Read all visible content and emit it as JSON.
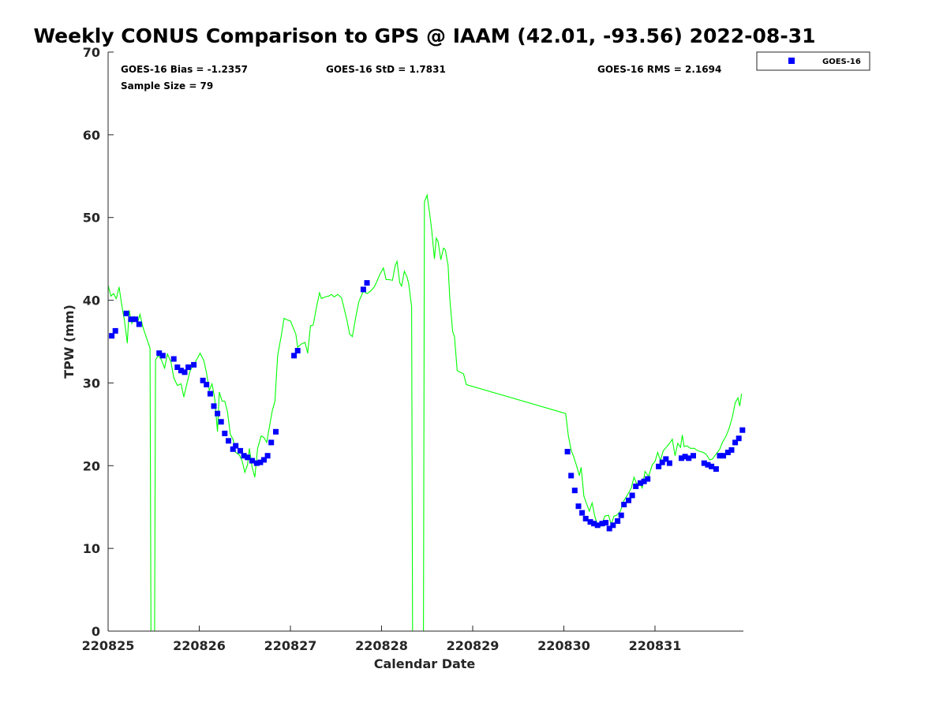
{
  "chart_data": {
    "type": "scatter",
    "title": "Weekly CONUS Comparison to GPS @ IAAM (42.01, -93.56) 2022-08-31",
    "xlabel": "Calendar Date",
    "ylabel": "TPW (mm)",
    "xlim": [
      0,
      6.97
    ],
    "ylim": [
      0,
      70
    ],
    "x_ticks": [
      {
        "value": 0,
        "label": "220825"
      },
      {
        "value": 1,
        "label": "220826"
      },
      {
        "value": 2,
        "label": "220827"
      },
      {
        "value": 3,
        "label": "220828"
      },
      {
        "value": 4,
        "label": "220829"
      },
      {
        "value": 5,
        "label": "220830"
      },
      {
        "value": 6,
        "label": "220831"
      }
    ],
    "y_ticks": [
      {
        "value": 0,
        "label": "0"
      },
      {
        "value": 10,
        "label": "10"
      },
      {
        "value": 20,
        "label": "20"
      },
      {
        "value": 30,
        "label": "30"
      },
      {
        "value": 40,
        "label": "40"
      },
      {
        "value": 50,
        "label": "50"
      },
      {
        "value": 60,
        "label": "60"
      },
      {
        "value": 70,
        "label": "70"
      }
    ],
    "x_note": "x values are in days after 220825 (2022-08-25 00Z), the first labeled tick",
    "stats": {
      "bias": "GOES-16 Bias = -1.2357",
      "std": "GOES-16 StD = 1.7831",
      "rms": "GOES-16 RMS = 2.1694",
      "sample": "Sample Size = 79"
    },
    "legend": {
      "position": "top-right",
      "entries": [
        "GOES-16"
      ]
    },
    "grid": false,
    "series": [
      {
        "name": "GOES-16",
        "kind": "points",
        "color": "#0000ff",
        "points": [
          [
            0.04,
            35.7
          ],
          [
            0.08,
            36.3
          ],
          [
            0.2,
            38.4
          ],
          [
            0.25,
            37.7
          ],
          [
            0.3,
            37.7
          ],
          [
            0.34,
            37.1
          ],
          [
            0.56,
            33.6
          ],
          [
            0.6,
            33.3
          ],
          [
            0.72,
            32.9
          ],
          [
            0.76,
            31.9
          ],
          [
            0.8,
            31.5
          ],
          [
            0.84,
            31.3
          ],
          [
            0.88,
            31.9
          ],
          [
            0.94,
            32.2
          ],
          [
            1.04,
            30.3
          ],
          [
            1.08,
            29.8
          ],
          [
            1.12,
            28.7
          ],
          [
            1.16,
            27.2
          ],
          [
            1.2,
            26.3
          ],
          [
            1.24,
            25.3
          ],
          [
            1.28,
            23.9
          ],
          [
            1.32,
            23.0
          ],
          [
            1.37,
            22.0
          ],
          [
            1.4,
            22.4
          ],
          [
            1.45,
            21.8
          ],
          [
            1.49,
            21.2
          ],
          [
            1.53,
            21.0
          ],
          [
            1.58,
            20.6
          ],
          [
            1.63,
            20.3
          ],
          [
            1.67,
            20.4
          ],
          [
            1.71,
            20.7
          ],
          [
            1.75,
            21.2
          ],
          [
            1.79,
            22.8
          ],
          [
            1.84,
            24.1
          ],
          [
            2.04,
            33.3
          ],
          [
            2.08,
            33.9
          ],
          [
            2.8,
            41.3
          ],
          [
            2.84,
            42.1
          ],
          [
            5.04,
            21.7
          ],
          [
            5.08,
            18.8
          ],
          [
            5.12,
            17.0
          ],
          [
            5.16,
            15.1
          ],
          [
            5.2,
            14.3
          ],
          [
            5.24,
            13.6
          ],
          [
            5.29,
            13.2
          ],
          [
            5.33,
            13.0
          ],
          [
            5.37,
            12.8
          ],
          [
            5.42,
            13.0
          ],
          [
            5.46,
            13.1
          ],
          [
            5.5,
            12.4
          ],
          [
            5.54,
            12.8
          ],
          [
            5.59,
            13.3
          ],
          [
            5.63,
            14.0
          ],
          [
            5.66,
            15.3
          ],
          [
            5.71,
            15.8
          ],
          [
            5.75,
            16.4
          ],
          [
            5.79,
            17.5
          ],
          [
            5.84,
            17.9
          ],
          [
            5.88,
            18.1
          ],
          [
            5.92,
            18.4
          ],
          [
            6.04,
            19.9
          ],
          [
            6.08,
            20.4
          ],
          [
            6.12,
            20.8
          ],
          [
            6.16,
            20.3
          ],
          [
            6.29,
            20.9
          ],
          [
            6.33,
            21.1
          ],
          [
            6.37,
            20.9
          ],
          [
            6.42,
            21.2
          ],
          [
            6.54,
            20.3
          ],
          [
            6.58,
            20.1
          ],
          [
            6.62,
            19.9
          ],
          [
            6.67,
            19.6
          ],
          [
            6.71,
            21.2
          ],
          [
            6.75,
            21.2
          ],
          [
            6.8,
            21.6
          ],
          [
            6.84,
            21.9
          ],
          [
            6.88,
            22.8
          ],
          [
            6.92,
            23.3
          ],
          [
            6.96,
            24.3
          ]
        ]
      },
      {
        "name": "GPS",
        "kind": "line",
        "color": "#00ff00",
        "points": [
          [
            0.0,
            41.8
          ],
          [
            0.03,
            40.5
          ],
          [
            0.06,
            40.8
          ],
          [
            0.09,
            40.2
          ],
          [
            0.12,
            41.6
          ],
          [
            0.15,
            39.4
          ],
          [
            0.18,
            37.5
          ],
          [
            0.21,
            34.8
          ],
          [
            0.23,
            38.8
          ],
          [
            0.26,
            37.2
          ],
          [
            0.29,
            38.0
          ],
          [
            0.32,
            37.2
          ],
          [
            0.35,
            38.3
          ],
          [
            0.38,
            36.8
          ],
          [
            0.42,
            35.5
          ],
          [
            0.46,
            34.2
          ],
          [
            0.47,
            0
          ],
          [
            0.51,
            0
          ],
          [
            0.52,
            32.8
          ],
          [
            0.55,
            33.3
          ],
          [
            0.58,
            32.9
          ],
          [
            0.62,
            31.8
          ],
          [
            0.65,
            33.5
          ],
          [
            0.69,
            32.5
          ],
          [
            0.72,
            30.6
          ],
          [
            0.76,
            29.7
          ],
          [
            0.8,
            29.9
          ],
          [
            0.83,
            28.3
          ],
          [
            0.86,
            29.7
          ],
          [
            0.9,
            31.5
          ],
          [
            0.94,
            32.2
          ],
          [
            0.98,
            33.0
          ],
          [
            1.01,
            33.6
          ],
          [
            1.05,
            32.7
          ],
          [
            1.08,
            31.2
          ],
          [
            1.11,
            29.1
          ],
          [
            1.14,
            29.9
          ],
          [
            1.17,
            28.1
          ],
          [
            1.2,
            24.1
          ],
          [
            1.22,
            28.9
          ],
          [
            1.25,
            27.8
          ],
          [
            1.28,
            27.8
          ],
          [
            1.31,
            26.5
          ],
          [
            1.34,
            23.8
          ],
          [
            1.37,
            23.2
          ],
          [
            1.4,
            21.6
          ],
          [
            1.44,
            21.3
          ],
          [
            1.47,
            20.6
          ],
          [
            1.5,
            19.2
          ],
          [
            1.53,
            20.1
          ],
          [
            1.55,
            22.1
          ],
          [
            1.58,
            19.8
          ],
          [
            1.61,
            18.6
          ],
          [
            1.64,
            22.1
          ],
          [
            1.68,
            23.6
          ],
          [
            1.71,
            23.4
          ],
          [
            1.74,
            22.8
          ],
          [
            1.77,
            24.7
          ],
          [
            1.8,
            26.6
          ],
          [
            1.83,
            27.8
          ],
          [
            1.86,
            33.3
          ],
          [
            1.9,
            35.7
          ],
          [
            1.93,
            37.8
          ],
          [
            1.97,
            37.6
          ],
          [
            2.0,
            37.5
          ],
          [
            2.03,
            36.7
          ],
          [
            2.06,
            35.9
          ],
          [
            2.08,
            34.3
          ],
          [
            2.12,
            34.7
          ],
          [
            2.16,
            34.9
          ],
          [
            2.19,
            33.6
          ],
          [
            2.22,
            36.9
          ],
          [
            2.25,
            37.0
          ],
          [
            2.28,
            38.8
          ],
          [
            2.32,
            40.9
          ],
          [
            2.34,
            40.2
          ],
          [
            2.38,
            40.4
          ],
          [
            2.42,
            40.5
          ],
          [
            2.45,
            40.7
          ],
          [
            2.48,
            40.4
          ],
          [
            2.52,
            40.7
          ],
          [
            2.56,
            40.3
          ],
          [
            2.59,
            39.0
          ],
          [
            2.62,
            37.6
          ],
          [
            2.65,
            35.9
          ],
          [
            2.68,
            35.6
          ],
          [
            2.72,
            38.1
          ],
          [
            2.75,
            39.8
          ],
          [
            2.8,
            41.1
          ],
          [
            2.84,
            40.8
          ],
          [
            2.88,
            41.1
          ],
          [
            2.92,
            41.6
          ],
          [
            2.95,
            42.3
          ],
          [
            2.98,
            43.1
          ],
          [
            3.02,
            43.9
          ],
          [
            3.05,
            42.5
          ],
          [
            3.08,
            42.5
          ],
          [
            3.12,
            42.4
          ],
          [
            3.15,
            44.2
          ],
          [
            3.17,
            44.7
          ],
          [
            3.2,
            42.1
          ],
          [
            3.22,
            41.7
          ],
          [
            3.25,
            43.5
          ],
          [
            3.28,
            42.8
          ],
          [
            3.3,
            41.9
          ],
          [
            3.33,
            39.2
          ],
          [
            3.34,
            0
          ],
          [
            3.46,
            0
          ],
          [
            3.47,
            51.9
          ],
          [
            3.5,
            52.7
          ],
          [
            3.53,
            50.3
          ],
          [
            3.55,
            48.5
          ],
          [
            3.58,
            45.0
          ],
          [
            3.6,
            47.5
          ],
          [
            3.62,
            47.1
          ],
          [
            3.65,
            44.9
          ],
          [
            3.68,
            46.3
          ],
          [
            3.7,
            46.1
          ],
          [
            3.73,
            44.2
          ],
          [
            3.75,
            40.0
          ],
          [
            3.78,
            36.2
          ],
          [
            3.8,
            35.6
          ],
          [
            3.83,
            31.5
          ],
          [
            3.86,
            31.3
          ],
          [
            3.9,
            31.1
          ],
          [
            3.93,
            29.8
          ],
          [
            5.02,
            26.3
          ],
          [
            5.05,
            23.6
          ],
          [
            5.08,
            21.9
          ],
          [
            5.11,
            21.0
          ],
          [
            5.14,
            20.0
          ],
          [
            5.17,
            18.8
          ],
          [
            5.19,
            19.8
          ],
          [
            5.22,
            16.3
          ],
          [
            5.25,
            15.4
          ],
          [
            5.28,
            14.5
          ],
          [
            5.31,
            15.5
          ],
          [
            5.34,
            13.9
          ],
          [
            5.37,
            12.8
          ],
          [
            5.41,
            12.7
          ],
          [
            5.45,
            13.9
          ],
          [
            5.49,
            14.0
          ],
          [
            5.52,
            12.9
          ],
          [
            5.55,
            13.9
          ],
          [
            5.58,
            14.0
          ],
          [
            5.62,
            14.5
          ],
          [
            5.66,
            15.8
          ],
          [
            5.7,
            16.5
          ],
          [
            5.74,
            17.3
          ],
          [
            5.77,
            18.6
          ],
          [
            5.8,
            17.8
          ],
          [
            5.83,
            18.0
          ],
          [
            5.86,
            17.3
          ],
          [
            5.89,
            19.3
          ],
          [
            5.93,
            18.7
          ],
          [
            5.97,
            20.1
          ],
          [
            6.0,
            20.5
          ],
          [
            6.03,
            21.6
          ],
          [
            6.06,
            20.6
          ],
          [
            6.09,
            21.8
          ],
          [
            6.13,
            22.3
          ],
          [
            6.16,
            22.7
          ],
          [
            6.19,
            23.2
          ],
          [
            6.22,
            21.2
          ],
          [
            6.25,
            22.7
          ],
          [
            6.28,
            22.2
          ],
          [
            6.3,
            23.7
          ],
          [
            6.32,
            22.3
          ],
          [
            6.35,
            22.4
          ],
          [
            6.39,
            22.1
          ],
          [
            6.43,
            22.1
          ],
          [
            6.47,
            21.8
          ],
          [
            6.5,
            21.7
          ],
          [
            6.53,
            21.6
          ],
          [
            6.56,
            21.4
          ],
          [
            6.6,
            20.7
          ],
          [
            6.63,
            20.8
          ],
          [
            6.67,
            21.4
          ],
          [
            6.71,
            22.0
          ],
          [
            6.74,
            22.8
          ],
          [
            6.78,
            23.6
          ],
          [
            6.81,
            24.4
          ],
          [
            6.85,
            25.9
          ],
          [
            6.88,
            27.6
          ],
          [
            6.91,
            28.2
          ],
          [
            6.93,
            27.2
          ],
          [
            6.95,
            28.7
          ]
        ]
      }
    ]
  }
}
